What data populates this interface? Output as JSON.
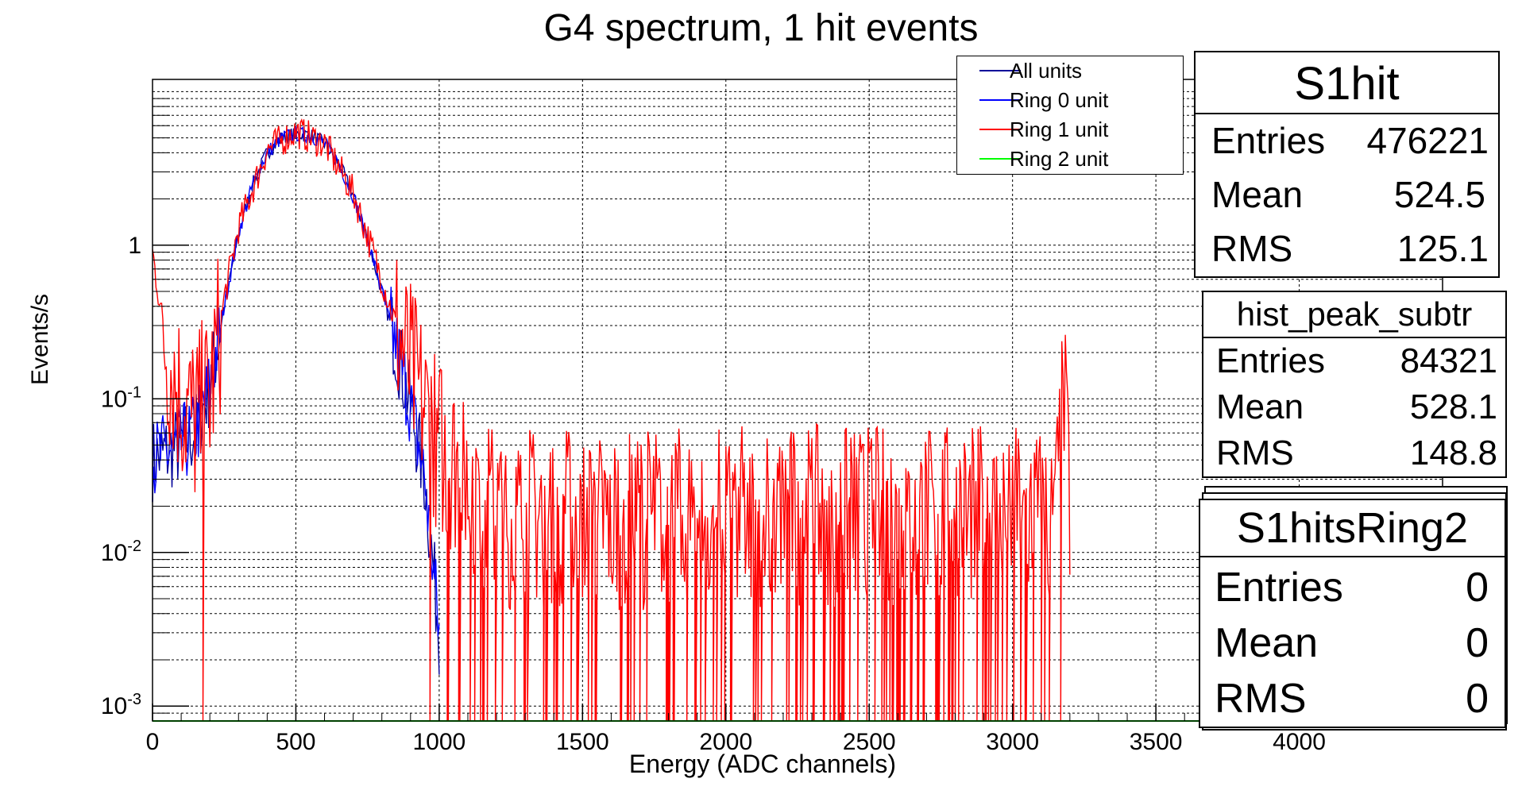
{
  "chart_data": {
    "type": "line",
    "title": "G4 spectrum, 1 hit events",
    "xlabel": "Energy (ADC channels)",
    "ylabel": "Events/s",
    "xlim": [
      0,
      4500
    ],
    "ylim": [
      0.0008,
      12
    ],
    "yscale": "log",
    "grid": true,
    "x_ticks": [
      "0",
      "500",
      "1000",
      "1500",
      "2000",
      "2500",
      "3000",
      "3500",
      "4000"
    ],
    "y_ticks": [
      {
        "base": "1",
        "exp": ""
      },
      {
        "base": "10",
        "exp": "-1"
      },
      {
        "base": "10",
        "exp": "-2"
      },
      {
        "base": "10",
        "exp": "-3"
      }
    ],
    "legend_position": "top-right",
    "series": [
      {
        "name": "All units",
        "color": "#000099",
        "points": [
          [
            0,
            0.04
          ],
          [
            50,
            0.045
          ],
          [
            100,
            0.05
          ],
          [
            150,
            0.06
          ],
          [
            200,
            0.12
          ],
          [
            250,
            0.4
          ],
          [
            300,
            1.2
          ],
          [
            350,
            2.5
          ],
          [
            400,
            4.0
          ],
          [
            450,
            5.0
          ],
          [
            500,
            5.3
          ],
          [
            550,
            5.2
          ],
          [
            600,
            4.6
          ],
          [
            650,
            3.4
          ],
          [
            700,
            2.1
          ],
          [
            750,
            1.1
          ],
          [
            800,
            0.5
          ],
          [
            850,
            0.22
          ],
          [
            900,
            0.09
          ],
          [
            950,
            0.03
          ],
          [
            1000,
            0.003
          ]
        ]
      },
      {
        "name": "Ring 0 unit",
        "color": "#0000ff",
        "points": [
          [
            0,
            0.04
          ],
          [
            50,
            0.045
          ],
          [
            100,
            0.05
          ],
          [
            150,
            0.06
          ],
          [
            200,
            0.12
          ],
          [
            250,
            0.4
          ],
          [
            300,
            1.2
          ],
          [
            350,
            2.5
          ],
          [
            400,
            4.0
          ],
          [
            450,
            5.0
          ],
          [
            500,
            5.3
          ],
          [
            550,
            5.2
          ],
          [
            600,
            4.6
          ],
          [
            650,
            3.4
          ],
          [
            700,
            2.1
          ],
          [
            750,
            1.1
          ],
          [
            800,
            0.5
          ],
          [
            850,
            0.22
          ],
          [
            900,
            0.09
          ],
          [
            950,
            0.03
          ],
          [
            1000,
            0.003
          ]
        ]
      },
      {
        "name": "Ring 1 unit",
        "color": "#ff0000",
        "points": [
          [
            0,
            0.9
          ],
          [
            20,
            0.5
          ],
          [
            50,
            0.2
          ],
          [
            100,
            0.1
          ],
          [
            150,
            0.07
          ],
          [
            200,
            0.1
          ],
          [
            250,
            0.45
          ],
          [
            300,
            1.3
          ],
          [
            400,
            4.2
          ],
          [
            500,
            5.5
          ],
          [
            600,
            4.6
          ],
          [
            700,
            2.2
          ],
          [
            800,
            0.6
          ],
          [
            900,
            0.15
          ],
          [
            1000,
            0.05
          ],
          [
            1100,
            0.03
          ],
          [
            1200,
            0.017
          ],
          [
            3150,
            0.017
          ],
          [
            3180,
            0.1
          ],
          [
            3200,
            0.02
          ]
        ]
      },
      {
        "name": "Ring 2 unit",
        "color": "#00ff00",
        "points": [
          [
            0,
            0.0008
          ],
          [
            4500,
            0.0008
          ]
        ]
      }
    ]
  },
  "stats_boxes": [
    {
      "title": "S1hit",
      "rows": [
        {
          "k": "Entries",
          "v": "476221"
        },
        {
          "k": "Mean",
          "v": "524.5"
        },
        {
          "k": "RMS",
          "v": "125.1"
        }
      ]
    },
    {
      "title": "hist_peak_subtr",
      "rows": [
        {
          "k": "Entries",
          "v": "84321"
        },
        {
          "k": "Mean",
          "v": "528.1"
        },
        {
          "k": "RMS",
          "v": "148.8"
        }
      ]
    },
    {
      "title": "S1hitsRing2",
      "rows": [
        {
          "k": "Entries",
          "v": "0"
        },
        {
          "k": "Mean",
          "v": "0"
        },
        {
          "k": "RMS",
          "v": "0"
        }
      ]
    }
  ]
}
